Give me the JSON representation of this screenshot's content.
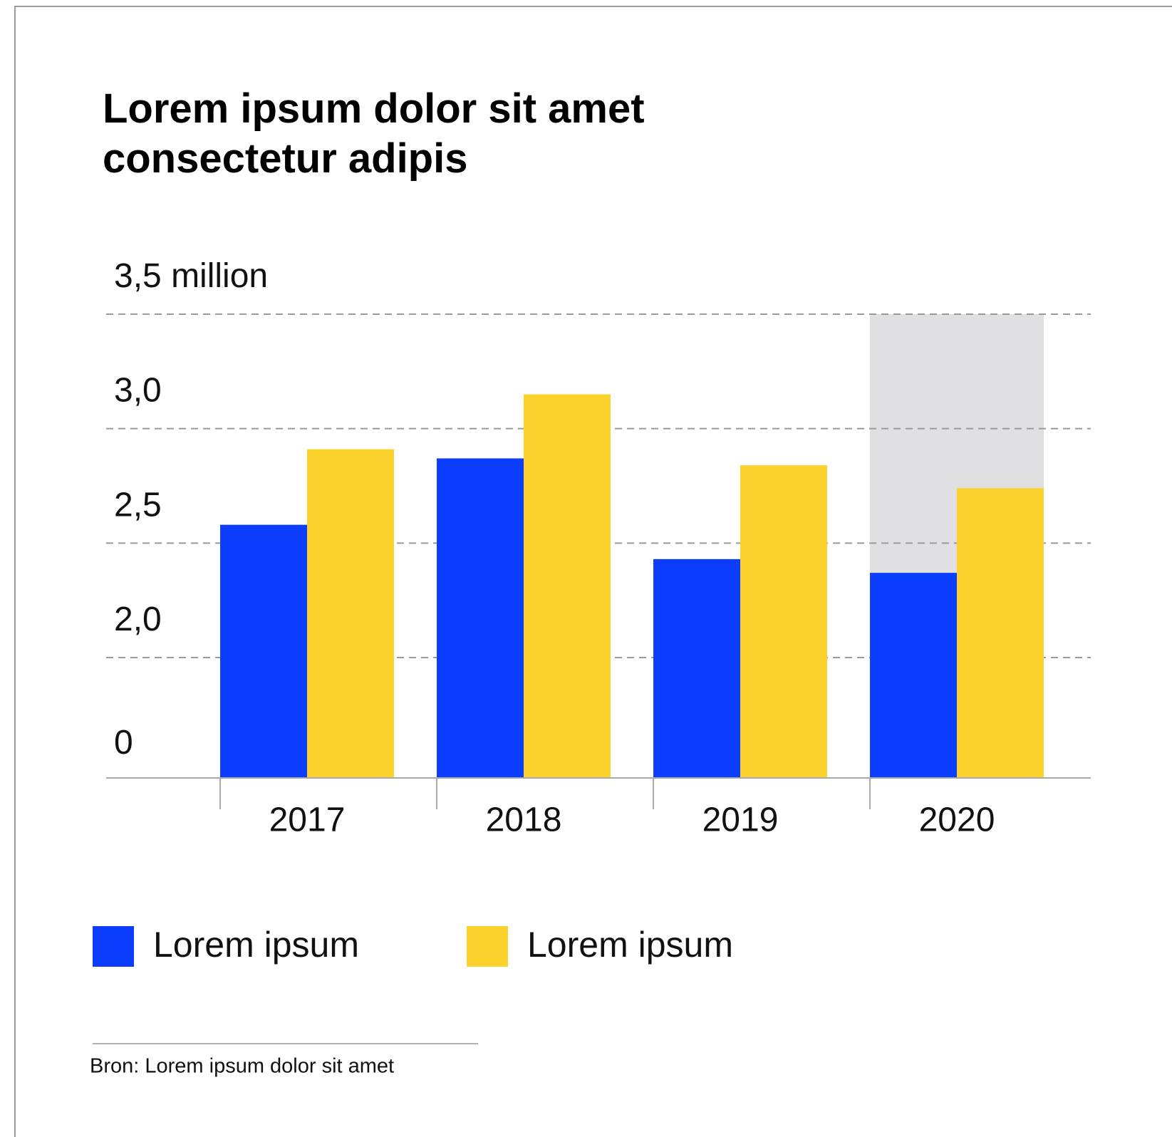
{
  "chart_data": {
    "type": "bar",
    "title": "Lorem ipsum dolor sit amet consectetur adipis",
    "categories": [
      "2017",
      "2018",
      "2019",
      "2020"
    ],
    "series": [
      {
        "name": "Lorem ipsum",
        "color": "#0c3cfc",
        "values": [
          2.58,
          2.87,
          2.43,
          2.37
        ]
      },
      {
        "name": "Lorem ipsum",
        "color": "#fbd22b",
        "values": [
          2.91,
          3.15,
          2.84,
          2.74
        ]
      }
    ],
    "ylim": [
      0,
      3.5
    ],
    "yticks": [
      0,
      {
        "value": 2,
        "label": "2,0"
      },
      {
        "value": 2.5,
        "label": "2,5"
      },
      {
        "value": 3,
        "label": "3,0"
      },
      {
        "value": 3.5,
        "label": "3,5 million"
      }
    ],
    "grid": true,
    "highlight": {
      "category": "2020",
      "color": "#e0e0e2"
    },
    "source": "Bron: Lorem ipsum dolor sit amet"
  }
}
